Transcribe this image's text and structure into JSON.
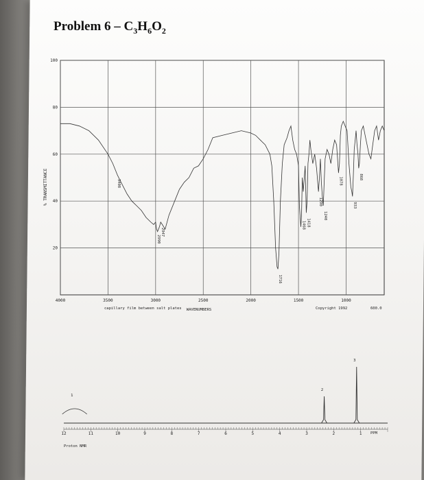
{
  "title": "Problem 6 – C3H6O2",
  "chart_data": [
    {
      "type": "line",
      "title": "",
      "xlabel": "WAVENUMBERS",
      "ylabel": "% TRANSMITTANCE",
      "xlim": [
        4000,
        600
      ],
      "ylim": [
        0,
        100
      ],
      "x_ticks": [
        "4000",
        "3500",
        "3000",
        "2500",
        "2000",
        "1500",
        "1000"
      ],
      "x_tick_values": [
        4000,
        3500,
        3000,
        2500,
        2000,
        1500,
        1000
      ],
      "y_ticks": [
        "100",
        "80",
        "60",
        "40",
        "20"
      ],
      "y_tick_values": [
        100,
        80,
        60,
        40,
        20
      ],
      "grid": true,
      "caption": "capillary film between salt plates",
      "copyright": "Copyright 1992",
      "end_label": "600.0",
      "series": [
        {
          "x": [
            4000,
            3900,
            3800,
            3700,
            3600,
            3500,
            3450,
            3400,
            3350,
            3300,
            3250,
            3200,
            3150,
            3100,
            3050,
            3020,
            3000,
            2990,
            2980,
            2960,
            2947,
            2930,
            2900,
            2860,
            2800,
            2750,
            2700,
            2650,
            2600,
            2550,
            2500,
            2450,
            2400,
            2300,
            2200,
            2100,
            2000,
            1950,
            1900,
            1850,
            1800,
            1780,
            1760,
            1740,
            1725,
            1716,
            1705,
            1690,
            1670,
            1650,
            1620,
            1600,
            1580,
            1560,
            1540,
            1520,
            1500,
            1490,
            1475,
            1468,
            1460,
            1450,
            1430,
            1418,
            1410,
            1400,
            1390,
            1380,
            1370,
            1350,
            1330,
            1310,
            1290,
            1280,
            1270,
            1260,
            1250,
            1240,
            1230,
            1220,
            1200,
            1180,
            1160,
            1140,
            1120,
            1100,
            1090,
            1080,
            1070,
            1060,
            1050,
            1030,
            1010,
            990,
            970,
            950,
            940,
            933,
            925,
            915,
            905,
            895,
            885,
            875,
            868,
            860,
            850,
            840,
            820,
            800,
            780,
            760,
            740,
            720,
            700,
            680,
            660,
            640,
            620,
            600
          ],
          "y": [
            73,
            73,
            72,
            70,
            66,
            60,
            56,
            51,
            47,
            43,
            40,
            38,
            36,
            33,
            31,
            30,
            31,
            28,
            27,
            29,
            31,
            30,
            28,
            34,
            40,
            45,
            48,
            50,
            54,
            55,
            58,
            62,
            67,
            68,
            69,
            70,
            69,
            68,
            66,
            64,
            60,
            55,
            40,
            20,
            12,
            11,
            18,
            40,
            56,
            64,
            67,
            70,
            72,
            66,
            62,
            60,
            55,
            38,
            29,
            34,
            50,
            44,
            55,
            35,
            40,
            56,
            60,
            66,
            62,
            56,
            60,
            54,
            44,
            50,
            58,
            48,
            42,
            38,
            48,
            58,
            62,
            60,
            56,
            62,
            66,
            64,
            58,
            52,
            56,
            68,
            72,
            74,
            72,
            70,
            56,
            46,
            44,
            42,
            50,
            62,
            66,
            70,
            64,
            60,
            54,
            56,
            64,
            70,
            72,
            68,
            64,
            60,
            58,
            64,
            70,
            72,
            66,
            70,
            72,
            70
          ]
        }
      ],
      "annotations": [
        {
          "label": "3408",
          "x": 3408
        },
        {
          "label": "2947",
          "x": 2947
        },
        {
          "label": "2990",
          "x": 2990
        },
        {
          "label": "1716",
          "x": 1716
        },
        {
          "label": "1468",
          "x": 1468
        },
        {
          "label": "1418",
          "x": 1418
        },
        {
          "label": "1290",
          "x": 1290
        },
        {
          "label": "1240",
          "x": 1240
        },
        {
          "label": "1078",
          "x": 1078
        },
        {
          "label": "933",
          "x": 933
        },
        {
          "label": "868",
          "x": 868
        }
      ]
    },
    {
      "type": "line",
      "title": "",
      "xlabel": "PPM",
      "caption": "Proton NMR",
      "xlim": [
        12,
        0
      ],
      "x_ticks": [
        "12",
        "11",
        "10",
        "9",
        "8",
        "7",
        "6",
        "5",
        "4",
        "3",
        "2",
        "1"
      ],
      "x_tick_values": [
        12,
        11,
        10,
        9,
        8,
        7,
        6,
        5,
        4,
        3,
        2,
        1
      ],
      "peaks": [
        {
          "shift": 11.6,
          "integration": "1",
          "shape": "broad"
        },
        {
          "shift": 2.35,
          "integration": "2",
          "shape": "sharp"
        },
        {
          "shift": 1.15,
          "integration": "3",
          "shape": "sharp"
        }
      ]
    }
  ]
}
